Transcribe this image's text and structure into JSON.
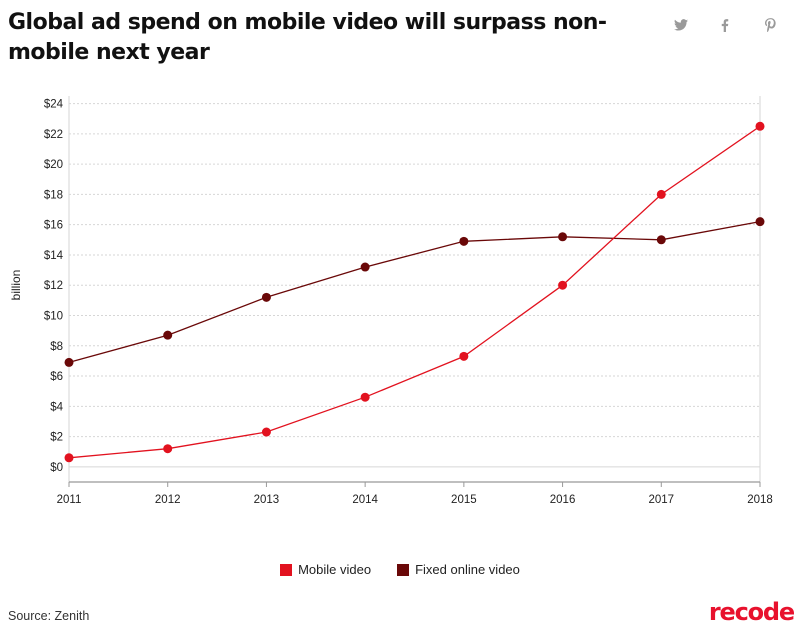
{
  "title": "Global ad spend on mobile video will surpass non-mobile next year",
  "share": {
    "twitter": "twitter-icon",
    "facebook": "facebook-icon",
    "pinterest": "pinterest-icon"
  },
  "source": "Source: Zenith",
  "brand": {
    "name": "recode",
    "color": "#e8112d"
  },
  "colors": {
    "mobile": "#e2121f",
    "fixed": "#6a0808",
    "grid": "#d6d6d6",
    "axis": "#999999"
  },
  "chart_data": {
    "type": "line",
    "x": [
      2011,
      2012,
      2013,
      2014,
      2015,
      2016,
      2017,
      2018
    ],
    "ylabel": "billion",
    "ylim": [
      -1,
      24.5
    ],
    "yticks": [
      0,
      2,
      4,
      6,
      8,
      10,
      12,
      14,
      16,
      18,
      20,
      22,
      24
    ],
    "ytick_labels": [
      "$0",
      "$2",
      "$4",
      "$6",
      "$8",
      "$10",
      "$12",
      "$14",
      "$16",
      "$18",
      "$20",
      "$22",
      "$24"
    ],
    "grid": true,
    "legend_position": "bottom-center",
    "series": [
      {
        "name": "Mobile video",
        "values": [
          0.6,
          1.2,
          2.3,
          4.6,
          7.3,
          12.0,
          18.0,
          22.5
        ]
      },
      {
        "name": "Fixed online video",
        "values": [
          6.9,
          8.7,
          11.2,
          13.2,
          14.9,
          15.2,
          15.0,
          16.2
        ]
      }
    ]
  }
}
